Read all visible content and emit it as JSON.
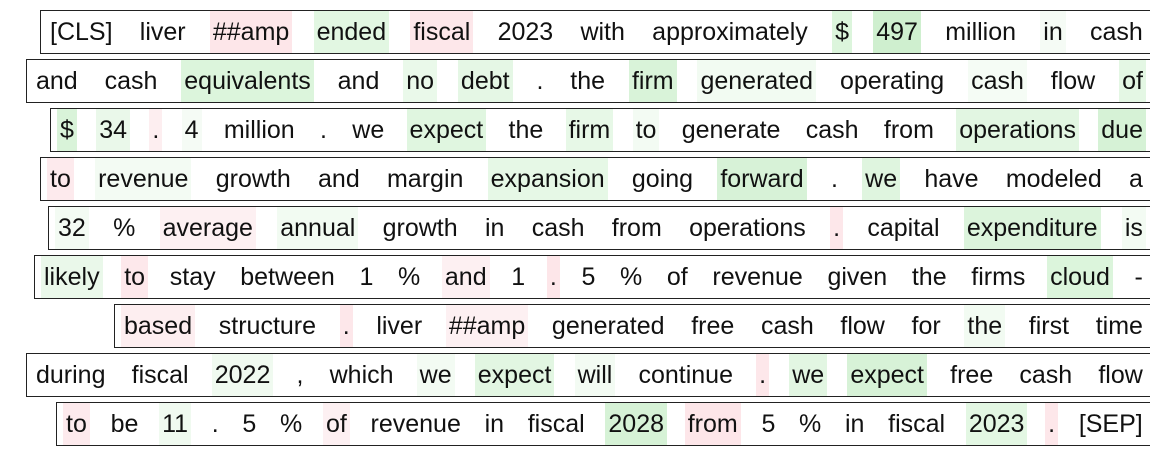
{
  "lines": [
    [
      {
        "t": "[CLS]",
        "c": "#ffffff"
      },
      {
        "t": "liver",
        "c": "#ffffff"
      },
      {
        "t": "##amp",
        "c": "#fde6e9"
      },
      {
        "t": "ended",
        "c": "#e2f7e2"
      },
      {
        "t": "fiscal",
        "c": "#fde7ea"
      },
      {
        "t": "2023",
        "c": "#ffffff"
      },
      {
        "t": "with",
        "c": "#ffffff"
      },
      {
        "t": "approximately",
        "c": "#ffffff"
      },
      {
        "t": "$",
        "c": "#dcf5dc"
      },
      {
        "t": "497",
        "c": "#cfefcf"
      },
      {
        "t": "million",
        "c": "#ffffff"
      },
      {
        "t": "in",
        "c": "#f5fbf5"
      },
      {
        "t": "cash",
        "c": "#ffffff"
      }
    ],
    [
      {
        "t": "and",
        "c": "#ffffff"
      },
      {
        "t": "cash",
        "c": "#ffffff"
      },
      {
        "t": "equivalents",
        "c": "#dcf5dc"
      },
      {
        "t": "and",
        "c": "#ffffff"
      },
      {
        "t": "no",
        "c": "#eaf9ea"
      },
      {
        "t": "debt",
        "c": "#e5f7e5"
      },
      {
        "t": ".",
        "c": "#ffffff"
      },
      {
        "t": "the",
        "c": "#ffffff"
      },
      {
        "t": "firm",
        "c": "#d9f3d9"
      },
      {
        "t": "generated",
        "c": "#f2fbf2"
      },
      {
        "t": "operating",
        "c": "#ffffff"
      },
      {
        "t": "cash",
        "c": "#f5fcf5"
      },
      {
        "t": "flow",
        "c": "#ffffff"
      },
      {
        "t": "of",
        "c": "#e4f7e4"
      }
    ],
    [
      {
        "t": "$",
        "c": "#d9f3d9"
      },
      {
        "t": "34",
        "c": "#eaf8ea"
      },
      {
        "t": ".",
        "c": "#fdeef0"
      },
      {
        "t": "4",
        "c": "#f5fbf5"
      },
      {
        "t": "million",
        "c": "#ffffff"
      },
      {
        "t": ".",
        "c": "#ffffff"
      },
      {
        "t": "we",
        "c": "#ffffff"
      },
      {
        "t": "expect",
        "c": "#e0f6e0"
      },
      {
        "t": "the",
        "c": "#ffffff"
      },
      {
        "t": "firm",
        "c": "#e7f8e7"
      },
      {
        "t": "to",
        "c": "#f3fbf3"
      },
      {
        "t": "generate",
        "c": "#ffffff"
      },
      {
        "t": "cash",
        "c": "#ffffff"
      },
      {
        "t": "from",
        "c": "#ffffff"
      },
      {
        "t": "operations",
        "c": "#e2f6e2"
      },
      {
        "t": "due",
        "c": "#d6f2d6"
      }
    ],
    [
      {
        "t": "to",
        "c": "#fdeaed"
      },
      {
        "t": "revenue",
        "c": "#f3fbf3"
      },
      {
        "t": "growth",
        "c": "#ffffff"
      },
      {
        "t": "and",
        "c": "#ffffff"
      },
      {
        "t": "margin",
        "c": "#ffffff"
      },
      {
        "t": "expansion",
        "c": "#e6f8e6"
      },
      {
        "t": "going",
        "c": "#ffffff"
      },
      {
        "t": "forward",
        "c": "#d7f2d7"
      },
      {
        "t": ".",
        "c": "#ffffff"
      },
      {
        "t": "we",
        "c": "#dff5df"
      },
      {
        "t": "have",
        "c": "#ffffff"
      },
      {
        "t": "modeled",
        "c": "#ffffff"
      },
      {
        "t": "a",
        "c": "#ffffff"
      }
    ],
    [
      {
        "t": "32",
        "c": "#f3fbf3"
      },
      {
        "t": "%",
        "c": "#ffffff"
      },
      {
        "t": "average",
        "c": "#fdf0f2"
      },
      {
        "t": "annual",
        "c": "#f2fbf2"
      },
      {
        "t": "growth",
        "c": "#ffffff"
      },
      {
        "t": "in",
        "c": "#ffffff"
      },
      {
        "t": "cash",
        "c": "#ffffff"
      },
      {
        "t": "from",
        "c": "#ffffff"
      },
      {
        "t": "operations",
        "c": "#ffffff"
      },
      {
        "t": ".",
        "c": "#fde7ea"
      },
      {
        "t": "capital",
        "c": "#ffffff"
      },
      {
        "t": "expenditure",
        "c": "#dcf4dc"
      },
      {
        "t": "is",
        "c": "#f3fbf3"
      }
    ],
    [
      {
        "t": "likely",
        "c": "#eaf8ea"
      },
      {
        "t": "to",
        "c": "#fde8eb"
      },
      {
        "t": "stay",
        "c": "#ffffff"
      },
      {
        "t": "between",
        "c": "#ffffff"
      },
      {
        "t": "1",
        "c": "#ffffff"
      },
      {
        "t": "%",
        "c": "#ffffff"
      },
      {
        "t": "and",
        "c": "#fdf0f2"
      },
      {
        "t": "1",
        "c": "#ffffff"
      },
      {
        "t": ".",
        "c": "#fde6e9"
      },
      {
        "t": "5",
        "c": "#ffffff"
      },
      {
        "t": "%",
        "c": "#ffffff"
      },
      {
        "t": "of",
        "c": "#ffffff"
      },
      {
        "t": "revenue",
        "c": "#ffffff"
      },
      {
        "t": "given",
        "c": "#ffffff"
      },
      {
        "t": "the",
        "c": "#ffffff"
      },
      {
        "t": "firms",
        "c": "#ffffff"
      },
      {
        "t": "cloud",
        "c": "#dcf5dc"
      },
      {
        "t": "-",
        "c": "#ffffff"
      }
    ],
    [
      {
        "t": "based",
        "c": "#fdeef0"
      },
      {
        "t": "structure",
        "c": "#ffffff"
      },
      {
        "t": ".",
        "c": "#fde7ea"
      },
      {
        "t": "liver",
        "c": "#ffffff"
      },
      {
        "t": "##amp",
        "c": "#fdf0f2"
      },
      {
        "t": "generated",
        "c": "#ffffff"
      },
      {
        "t": "free",
        "c": "#ffffff"
      },
      {
        "t": "cash",
        "c": "#ffffff"
      },
      {
        "t": "flow",
        "c": "#ffffff"
      },
      {
        "t": "for",
        "c": "#ffffff"
      },
      {
        "t": "the",
        "c": "#f2fbf2"
      },
      {
        "t": "first",
        "c": "#ffffff"
      },
      {
        "t": "time",
        "c": "#ffffff"
      }
    ],
    [
      {
        "t": "during",
        "c": "#ffffff"
      },
      {
        "t": "fiscal",
        "c": "#ffffff"
      },
      {
        "t": "2022",
        "c": "#f0faf0"
      },
      {
        "t": ",",
        "c": "#ffffff"
      },
      {
        "t": "which",
        "c": "#ffffff"
      },
      {
        "t": "we",
        "c": "#f3fbf3"
      },
      {
        "t": "expect",
        "c": "#e2f6e2"
      },
      {
        "t": "will",
        "c": "#f3fbf3"
      },
      {
        "t": "continue",
        "c": "#ffffff"
      },
      {
        "t": ".",
        "c": "#fde7ea"
      },
      {
        "t": "we",
        "c": "#e2f6e2"
      },
      {
        "t": "expect",
        "c": "#d7f2d7"
      },
      {
        "t": "free",
        "c": "#ffffff"
      },
      {
        "t": "cash",
        "c": "#ffffff"
      },
      {
        "t": "flow",
        "c": "#ffffff"
      }
    ],
    [
      {
        "t": "to",
        "c": "#fdeaed"
      },
      {
        "t": "be",
        "c": "#ffffff"
      },
      {
        "t": "11",
        "c": "#f0faf0"
      },
      {
        "t": ".",
        "c": "#ffffff"
      },
      {
        "t": "5",
        "c": "#ffffff"
      },
      {
        "t": "%",
        "c": "#ffffff"
      },
      {
        "t": "of",
        "c": "#fdf0f2"
      },
      {
        "t": "revenue",
        "c": "#ffffff"
      },
      {
        "t": "in",
        "c": "#ffffff"
      },
      {
        "t": "fiscal",
        "c": "#ffffff"
      },
      {
        "t": "2028",
        "c": "#d6f2d6"
      },
      {
        "t": "from",
        "c": "#fde6e9"
      },
      {
        "t": "5",
        "c": "#ffffff"
      },
      {
        "t": "%",
        "c": "#ffffff"
      },
      {
        "t": "in",
        "c": "#ffffff"
      },
      {
        "t": "fiscal",
        "c": "#ffffff"
      },
      {
        "t": "2023",
        "c": "#e3f7e3"
      },
      {
        "t": ".",
        "c": "#fde7ea"
      },
      {
        "t": "[SEP]",
        "c": "#ffffff"
      }
    ]
  ]
}
